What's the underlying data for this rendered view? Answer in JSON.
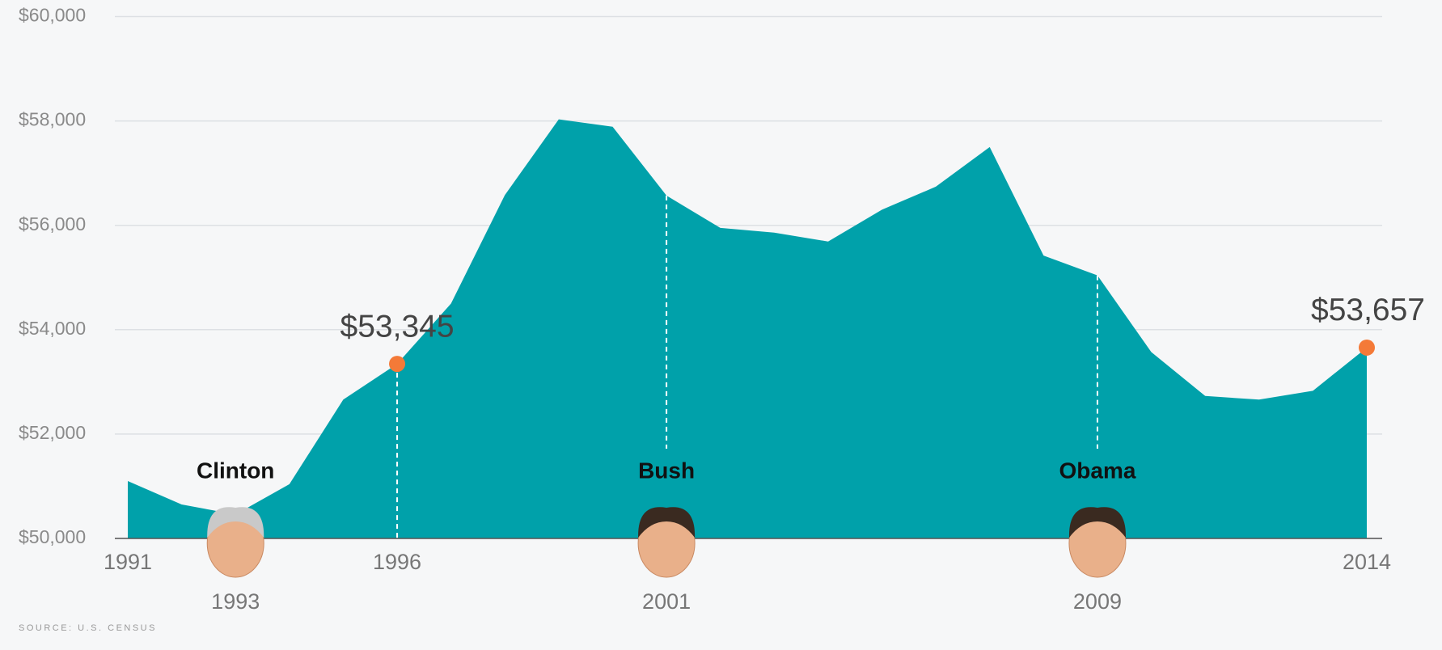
{
  "chart_data": {
    "type": "area",
    "x": [
      1991,
      1992,
      1993,
      1994,
      1995,
      1996,
      1997,
      1998,
      1999,
      2000,
      2001,
      2002,
      2003,
      2004,
      2005,
      2006,
      2007,
      2008,
      2009,
      2010,
      2011,
      2012,
      2013,
      2014
    ],
    "values": [
      51100,
      50650,
      50460,
      51040,
      52660,
      53345,
      54500,
      56580,
      58030,
      57890,
      56570,
      55950,
      55860,
      55690,
      56300,
      56740,
      57500,
      55420,
      55040,
      53570,
      52730,
      52660,
      52830,
      53657
    ],
    "value_labels": [
      null,
      null,
      null,
      null,
      null,
      "$53,345",
      null,
      null,
      null,
      null,
      null,
      null,
      null,
      null,
      null,
      null,
      null,
      null,
      null,
      null,
      null,
      null,
      null,
      "$53,657"
    ],
    "color": "#00a1aa",
    "marker_color": "#f47a38",
    "xlim": [
      1991,
      2014
    ],
    "xticks": [
      1991,
      1996,
      2014
    ],
    "ylim": [
      50000,
      60000
    ],
    "yticks": [
      {
        "value": 50000,
        "label": "$50,000"
      },
      {
        "value": 52000,
        "label": "$52,000"
      },
      {
        "value": 54000,
        "label": "$54,000"
      },
      {
        "value": 56000,
        "label": "$56,000"
      },
      {
        "value": 58000,
        "label": "$58,000"
      },
      {
        "value": 60000,
        "label": "$60,000"
      }
    ],
    "grid": true,
    "presidents": [
      {
        "name": "Clinton",
        "year": 1993
      },
      {
        "name": "Bush",
        "year": 2001
      },
      {
        "name": "Obama",
        "year": 2009
      }
    ],
    "source": "SOURCE: U.S. CENSUS"
  }
}
